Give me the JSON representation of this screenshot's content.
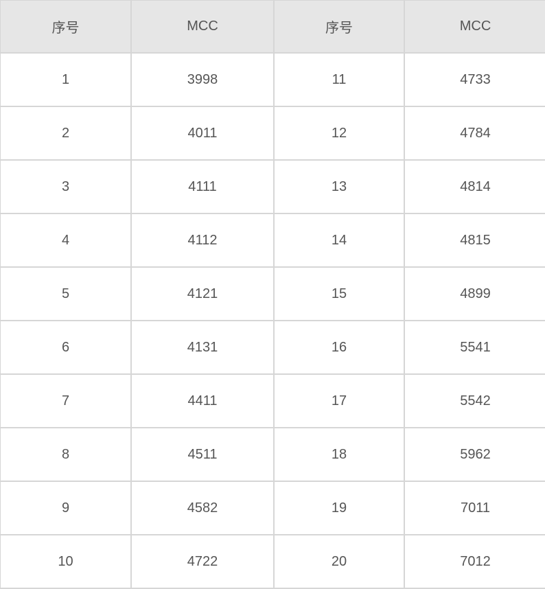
{
  "table": {
    "headers": [
      "序号",
      "MCC",
      "序号",
      "MCC"
    ],
    "rows": [
      [
        "1",
        "3998",
        "11",
        "4733"
      ],
      [
        "2",
        "4011",
        "12",
        "4784"
      ],
      [
        "3",
        "4111",
        "13",
        "4814"
      ],
      [
        "4",
        "4112",
        "14",
        "4815"
      ],
      [
        "5",
        "4121",
        "15",
        "4899"
      ],
      [
        "6",
        "4131",
        "16",
        "5541"
      ],
      [
        "7",
        "4411",
        "17",
        "5542"
      ],
      [
        "8",
        "4511",
        "18",
        "5962"
      ],
      [
        "9",
        "4582",
        "19",
        "7011"
      ],
      [
        "10",
        "4722",
        "20",
        "7012"
      ]
    ]
  },
  "colors": {
    "header_bg": "#e6e6e6",
    "border": "#d6d6d6",
    "text": "#555555"
  }
}
